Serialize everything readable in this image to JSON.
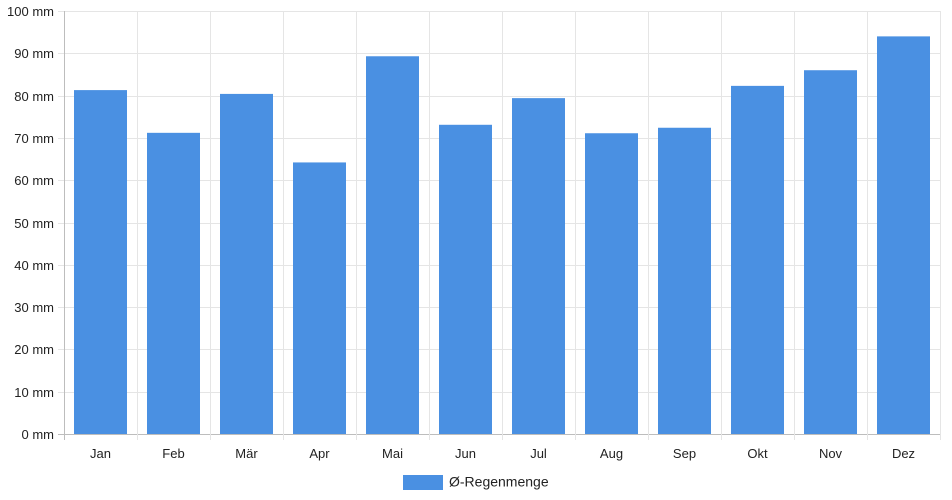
{
  "chart_data": {
    "type": "bar",
    "categories": [
      "Jan",
      "Feb",
      "Mär",
      "Apr",
      "Mai",
      "Jun",
      "Jul",
      "Aug",
      "Sep",
      "Okt",
      "Nov",
      "Dez"
    ],
    "series": [
      {
        "name": "Ø-Regenmenge",
        "values": [
          81.3,
          71.2,
          80.4,
          64.2,
          89.3,
          73.1,
          79.4,
          71.1,
          72.4,
          82.3,
          86.0,
          94.0
        ],
        "color": "#4a90e2"
      }
    ],
    "ylim": [
      0,
      100
    ],
    "y_ticks": [
      0,
      10,
      20,
      30,
      40,
      50,
      60,
      70,
      80,
      90,
      100
    ],
    "y_tick_labels": [
      "0 mm",
      "10 mm",
      "20 mm",
      "30 mm",
      "40 mm",
      "50 mm",
      "60 mm",
      "70 mm",
      "80 mm",
      "90 mm",
      "100 mm"
    ],
    "grid": true,
    "legend_position": "bottom-center",
    "xlabel": "",
    "ylabel": ""
  }
}
